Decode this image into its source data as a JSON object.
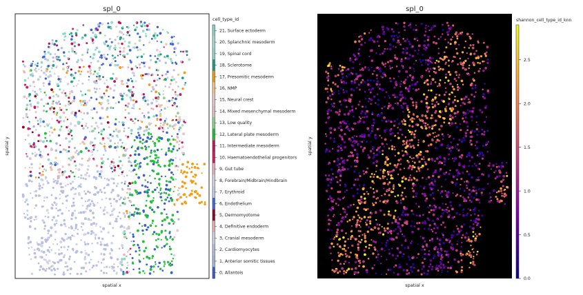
{
  "chart_data": [
    {
      "type": "scatter",
      "title": "spl_0",
      "xlabel": "spatial x",
      "ylabel": "spatial y",
      "legend_title": "cell_type_id",
      "legend_placement": "right",
      "categories": [
        {
          "label": "21, Surface ectoderm",
          "color": "#8fd6c6"
        },
        {
          "label": "20, Splanchnic mesoderm",
          "color": "#a8dcd0"
        },
        {
          "label": "19, Spinal cord",
          "color": "#93d8cb"
        },
        {
          "label": "18, Sclerotome",
          "color": "#1f9e89"
        },
        {
          "label": "17, Presomitic mesoderm",
          "color": "#f39c12"
        },
        {
          "label": "16, NMP",
          "color": "#f7c58a"
        },
        {
          "label": "15, Neural crest",
          "color": "#e8c9d0"
        },
        {
          "label": "14, Mixed mesenchymal mesoderm",
          "color": "#e6bfc6"
        },
        {
          "label": "13, Low quality",
          "color": "#8fd18f"
        },
        {
          "label": "12, Lateral plate mesoderm",
          "color": "#22c13a"
        },
        {
          "label": "11, Intermediate mesoderm",
          "color": "#c2185b"
        },
        {
          "label": "10, Haematoendothelial progenitors",
          "color": "#d81b60"
        },
        {
          "label": "9, Gut tube",
          "color": "#e7b3bd"
        },
        {
          "label": "8, Forebrain/Midbrain/Hindbrain",
          "color": "#d6d6e8"
        },
        {
          "label": "7, Erythroid",
          "color": "#c8cce6"
        },
        {
          "label": "6, Endothelium",
          "color": "#4169e1"
        },
        {
          "label": "5, Dermomyotome",
          "color": "#8b0a25"
        },
        {
          "label": "4, Definitive endoderm",
          "color": "#eab0b8"
        },
        {
          "label": "3, Cranial mesoderm",
          "color": "#cfd3ea"
        },
        {
          "label": "2, Cardiomyocytes",
          "color": "#b8bde3"
        },
        {
          "label": "1, Anterior somitic tissues",
          "color": "#a9b6e0"
        },
        {
          "label": "0, Allantois",
          "color": "#3a5fcd"
        }
      ]
    },
    {
      "type": "scatter",
      "title": "spl_0",
      "xlabel": "spatial x",
      "ylabel": "spatial y",
      "colorbar_label": "shannon_cell_type_id_knn",
      "colormap": "plasma",
      "colorbar_range": [
        0.0,
        2.9
      ],
      "colorbar_ticks": [
        "0.0",
        "0.5",
        "1.0",
        "1.5",
        "2.0",
        "2.5"
      ],
      "background": "#000000"
    }
  ]
}
